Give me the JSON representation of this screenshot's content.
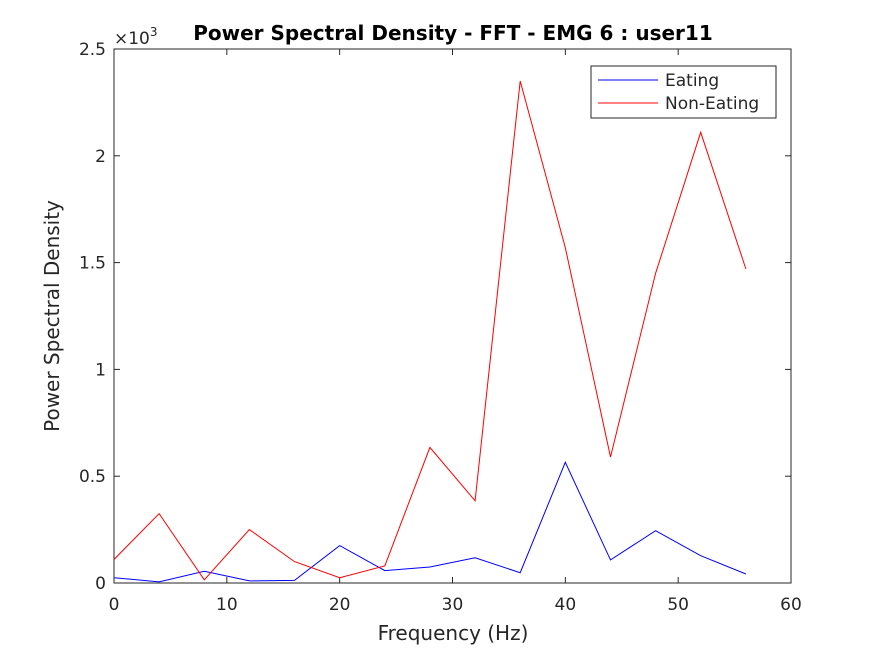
{
  "chart_data": {
    "type": "line",
    "title": "Power Spectral Density - FFT - EMG 6 :  user11",
    "xlabel": "Frequency (Hz)",
    "ylabel": "Power Spectral Density",
    "y_exponent_label": "×10",
    "y_exponent_power": "3",
    "xlim": [
      0,
      60
    ],
    "ylim": [
      0,
      2.5
    ],
    "xticks": [
      0,
      10,
      20,
      30,
      40,
      50,
      60
    ],
    "xtick_labels": [
      "0",
      "10",
      "20",
      "30",
      "40",
      "50",
      "60"
    ],
    "yticks": [
      0,
      0.5,
      1,
      1.5,
      2,
      2.5
    ],
    "ytick_labels": [
      "0",
      "0.5",
      "1",
      "1.5",
      "2",
      "2.5"
    ],
    "grid": false,
    "legend_position": "top-right",
    "x": [
      0,
      4,
      8,
      12,
      16,
      20,
      24,
      28,
      32,
      36,
      40,
      44,
      48,
      52,
      56
    ],
    "series": [
      {
        "name": "Eating",
        "color": "#0000ff",
        "values": [
          0.025,
          0.005,
          0.055,
          0.01,
          0.012,
          0.175,
          0.058,
          0.075,
          0.118,
          0.048,
          0.565,
          0.108,
          0.245,
          0.128,
          0.042
        ]
      },
      {
        "name": "Non-Eating",
        "color": "#ff0000",
        "values": [
          0.11,
          0.325,
          0.015,
          0.25,
          0.1,
          0.025,
          0.08,
          0.635,
          0.385,
          2.35,
          1.57,
          0.59,
          1.45,
          2.11,
          1.47
        ]
      }
    ]
  }
}
